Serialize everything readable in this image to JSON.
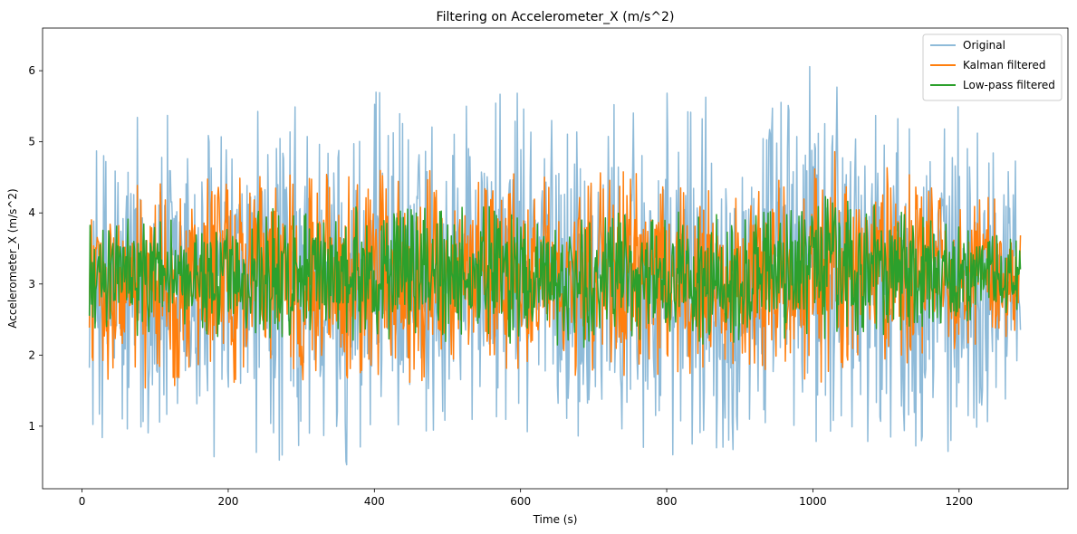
{
  "chart_data": {
    "type": "line",
    "title": "Filtering on Accelerometer_X (m/s^2)",
    "xlabel": "Time (s)",
    "ylabel": "Accelerometer_X (m/s^2)",
    "xlim": [
      -54,
      1349
    ],
    "ylim": [
      0.12,
      6.6
    ],
    "xticks": [
      0,
      200,
      400,
      600,
      800,
      1000,
      1200
    ],
    "yticks": [
      1,
      2,
      3,
      4,
      5,
      6
    ],
    "grid": false,
    "legend_position": "top-right",
    "x_range": [
      10,
      1284
    ],
    "series": [
      {
        "name": "Original",
        "color": "#1f77b4",
        "opacity": 0.5,
        "mean": 3.1,
        "min": 0.4,
        "max": 6.3,
        "envelope_x": [
          10,
          80,
          190,
          285,
          355,
          405,
          470,
          515,
          575,
          655,
          745,
          805,
          870,
          940,
          1020,
          1040,
          1100,
          1200,
          1284
        ],
        "envelope_upper": [
          4.8,
          5.5,
          5.3,
          5.6,
          5.3,
          5.8,
          5.3,
          5.8,
          5.7,
          5.8,
          5.5,
          5.7,
          5.8,
          5.6,
          6.3,
          6.1,
          5.5,
          5.5,
          5.0
        ],
        "envelope_lower": [
          0.9,
          0.4,
          0.45,
          0.45,
          0.4,
          0.8,
          0.85,
          0.75,
          0.85,
          0.6,
          0.5,
          0.5,
          0.6,
          0.6,
          0.7,
          0.7,
          0.8,
          0.6,
          1.6
        ]
      },
      {
        "name": "Kalman filtered",
        "color": "#ff7f0e",
        "opacity": 1,
        "mean": 3.1,
        "min": 1.5,
        "max": 4.9,
        "envelope_x": [
          10,
          100,
          310,
          520,
          700,
          900,
          1020,
          1284
        ],
        "envelope_upper": [
          4.2,
          4.5,
          4.6,
          4.6,
          4.6,
          4.5,
          4.9,
          4.1
        ],
        "envelope_lower": [
          1.7,
          1.5,
          1.6,
          1.6,
          1.7,
          1.7,
          1.6,
          2.3
        ]
      },
      {
        "name": "Low-pass filtered",
        "color": "#2ca02c",
        "opacity": 1,
        "mean": 3.1,
        "min": 2.1,
        "max": 4.3,
        "envelope_x": [
          10,
          300,
          520,
          900,
          1020,
          1284
        ],
        "envelope_upper": [
          3.9,
          4.1,
          4.1,
          4.0,
          4.3,
          3.6
        ],
        "envelope_lower": [
          2.3,
          2.2,
          2.1,
          2.1,
          2.2,
          2.5
        ]
      }
    ]
  }
}
